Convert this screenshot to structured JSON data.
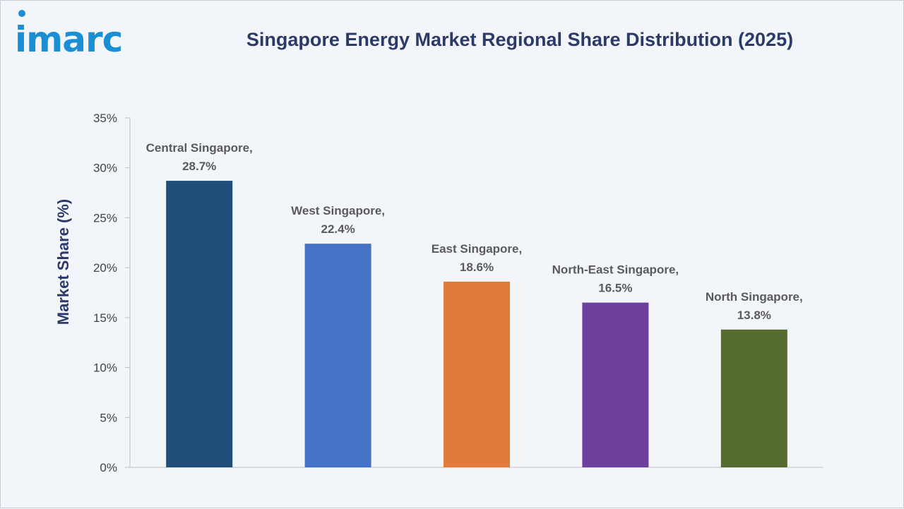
{
  "logo": {
    "text": "imarc"
  },
  "chart_data": {
    "type": "bar",
    "title": "Singapore Energy Market Regional Share Distribution (2025)",
    "ylabel": "Market Share (%)",
    "xlabel": "",
    "ylim": [
      0,
      35
    ],
    "yticks": [
      "0%",
      "5%",
      "10%",
      "15%",
      "20%",
      "25%",
      "30%",
      "35%"
    ],
    "categories": [
      "Central Singapore",
      "West Singapore",
      "East Singapore",
      "North-East Singapore",
      "North Singapore"
    ],
    "values": [
      28.7,
      22.4,
      18.6,
      16.5,
      13.8
    ],
    "data_labels": [
      [
        "Central Singapore,",
        "28.7%"
      ],
      [
        "West Singapore,",
        "22.4%"
      ],
      [
        "East Singapore,",
        "18.6%"
      ],
      [
        "North-East Singapore,",
        "16.5%"
      ],
      [
        "North Singapore,",
        "13.8%"
      ]
    ],
    "colors": [
      "#1f4e79",
      "#4472c4",
      "#e07b39",
      "#6f3f9e",
      "#556b2f"
    ],
    "grid": false,
    "legend": "none"
  }
}
